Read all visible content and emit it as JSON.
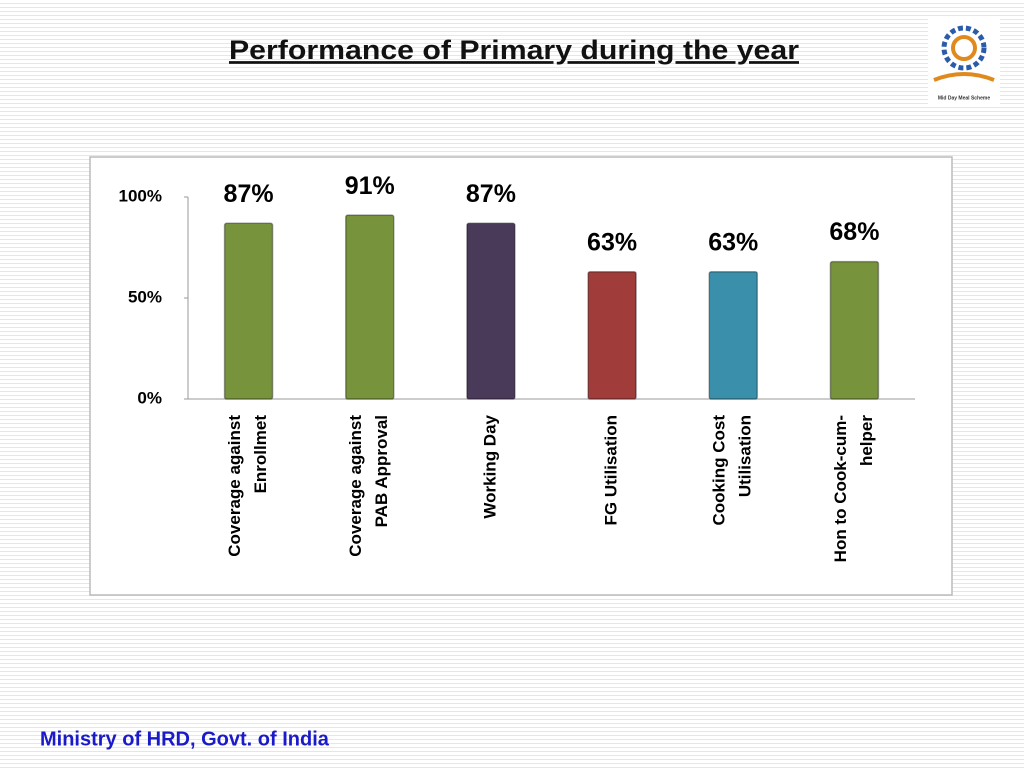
{
  "chart_data": {
    "type": "bar",
    "title": "Performance of Primary during the year",
    "categories": [
      [
        "Coverage against",
        "Enrollmet"
      ],
      [
        "Coverage against",
        "PAB Approval"
      ],
      [
        "Working Day"
      ],
      [
        "FG Utilisation"
      ],
      [
        "Cooking Cost",
        "Utilisation"
      ],
      [
        "Hon to Cook-cum-",
        "helper"
      ]
    ],
    "values": [
      87,
      91,
      87,
      63,
      63,
      68
    ],
    "value_labels": [
      "87%",
      "91%",
      "87%",
      "63%",
      "63%",
      "68%"
    ],
    "colors": [
      "#77933c",
      "#77933c",
      "#4a3a5a",
      "#a03c3a",
      "#3a90aa",
      "#77933c"
    ],
    "ylim": [
      0,
      100
    ],
    "yticks": [
      {
        "value": 0,
        "label": "0%"
      },
      {
        "value": 50,
        "label": "50%"
      },
      {
        "value": 100,
        "label": "100%"
      }
    ],
    "grid": false
  },
  "logo": {
    "text": "Mid Day Meal Scheme"
  },
  "footer": {
    "text": "Ministry of HRD, Govt. of India"
  }
}
